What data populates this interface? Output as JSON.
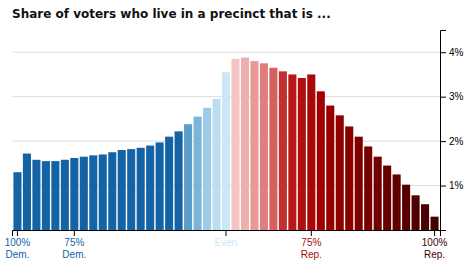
{
  "chart_data": {
    "type": "bar",
    "title": "Share of voters who live in a precinct that is ...",
    "categories": [
      "100% Dem.",
      null,
      null,
      null,
      null,
      null,
      "75% Dem.",
      null,
      null,
      null,
      null,
      null,
      null,
      null,
      null,
      null,
      null,
      null,
      null,
      null,
      null,
      null,
      "Even",
      null,
      null,
      null,
      null,
      null,
      null,
      null,
      null,
      "75% Rep.",
      null,
      null,
      null,
      null,
      null,
      null,
      null,
      null,
      null,
      null,
      null,
      null,
      "100% Rep."
    ],
    "values": [
      1.3,
      1.72,
      1.58,
      1.55,
      1.55,
      1.58,
      1.62,
      1.65,
      1.68,
      1.7,
      1.75,
      1.8,
      1.82,
      1.85,
      1.9,
      1.97,
      2.1,
      2.22,
      2.38,
      2.55,
      2.75,
      2.95,
      3.55,
      3.85,
      3.88,
      3.8,
      3.75,
      3.65,
      3.57,
      3.5,
      3.42,
      3.5,
      3.12,
      2.8,
      2.58,
      2.33,
      2.1,
      1.88,
      1.65,
      1.45,
      1.25,
      1.02,
      0.78,
      0.58,
      0.3
    ],
    "colors": [
      "#1464a5",
      "#1464a5",
      "#1464a5",
      "#1464a5",
      "#1464a5",
      "#1464a5",
      "#1464a5",
      "#1464a5",
      "#1464a5",
      "#1464a5",
      "#1464a5",
      "#1464a5",
      "#1464a5",
      "#1464a5",
      "#1464a5",
      "#1464a5",
      "#1464a5",
      "#1464a5",
      "#5b9ec9",
      "#7ab4d8",
      "#9dcbe8",
      "#bcddf2",
      "#cce8f8",
      "#f5c5c5",
      "#f0afaf",
      "#e89898",
      "#de7f7f",
      "#d46060",
      "#c43030",
      "#b81818",
      "#b01010",
      "#a80808",
      "#a00000",
      "#980000",
      "#900000",
      "#880000",
      "#800000",
      "#780000",
      "#700000",
      "#680000",
      "#600000",
      "#580000",
      "#500000",
      "#480000",
      "#400000"
    ],
    "ylim": [
      0,
      4.5
    ],
    "yticks": [
      {
        "value": 1,
        "label": "1%"
      },
      {
        "value": 2,
        "label": "2%"
      },
      {
        "value": 3,
        "label": "3%"
      },
      {
        "value": 4,
        "label": "4%"
      }
    ],
    "grid": true
  }
}
